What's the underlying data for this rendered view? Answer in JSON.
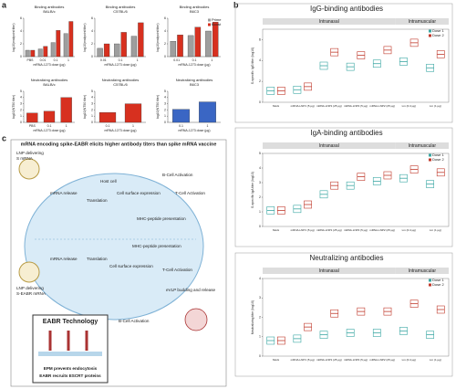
{
  "panel_labels": [
    "a",
    "b",
    "c"
  ],
  "chart_data": [
    {
      "type": "bar",
      "title": "Binding antibodies",
      "subtitle": "BALB/c",
      "ylabel": "log10(endpoint titer)",
      "xlabel": "mRNA-1273 dose (µg)",
      "categories": [
        "PBS",
        "0.01",
        "0.1",
        "1"
      ],
      "ylim": [
        0,
        6
      ],
      "yticks": [
        0,
        2,
        4,
        6
      ],
      "series": [
        {
          "name": "Prime",
          "color": "#9e9e9e",
          "values": [
            1,
            1.2,
            2.2,
            3.6
          ]
        },
        {
          "name": "Boost",
          "color": "#d7301f",
          "values": [
            1,
            1.6,
            4.1,
            5.5
          ]
        }
      ]
    },
    {
      "type": "bar",
      "title": "Binding antibodies",
      "subtitle": "C57BL/6",
      "ylabel": "log10(endpoint titer)",
      "xlabel": "mRNA-1273 dose (µg)",
      "categories": [
        "0.01",
        "0.1",
        "1"
      ],
      "ylim": [
        0,
        6
      ],
      "yticks": [
        0,
        2,
        4,
        6
      ],
      "series": [
        {
          "name": "Prime",
          "color": "#9e9e9e",
          "values": [
            1.3,
            2.0,
            3.2
          ]
        },
        {
          "name": "Boost",
          "color": "#d7301f",
          "values": [
            2.0,
            3.8,
            5.3
          ]
        }
      ]
    },
    {
      "type": "bar",
      "title": "Binding antibodies",
      "subtitle": "B6C3",
      "ylabel": "log10(endpoint titer)",
      "xlabel": "mRNA-1273 dose (µg)",
      "categories": [
        "0.01",
        "0.1",
        "1"
      ],
      "ylim": [
        0,
        6
      ],
      "yticks": [
        0,
        2,
        4,
        6
      ],
      "legend": "top-right",
      "series": [
        {
          "name": "Prime",
          "color": "#9e9e9e",
          "values": [
            2.4,
            3.3,
            4.0
          ]
        },
        {
          "name": "Boost",
          "color": "#d7301f",
          "values": [
            3.4,
            4.6,
            5.4
          ]
        }
      ]
    },
    {
      "type": "bar",
      "title": "Neutralizing antibodies",
      "subtitle": "BALB/c",
      "ylabel": "log10(NT50 titer)",
      "xlabel": "mRNA-1273 dose (µg)",
      "categories": [
        "PBS",
        "0.1",
        "1"
      ],
      "ylim": [
        0,
        5
      ],
      "yticks": [
        0,
        1,
        2,
        3,
        4,
        5
      ],
      "series": [
        {
          "name": "Boost",
          "color": "#d7301f",
          "values": [
            1.5,
            1.8,
            4.0
          ]
        }
      ]
    },
    {
      "type": "bar",
      "title": "Neutralizing antibodies",
      "subtitle": "C57BL/6",
      "ylabel": "log10(NT50 titer)",
      "xlabel": "mRNA-1273 dose (µg)",
      "categories": [
        "0.1",
        "1"
      ],
      "ylim": [
        0,
        5
      ],
      "yticks": [
        0,
        1,
        2,
        3,
        4,
        5
      ],
      "series": [
        {
          "name": "Boost",
          "color": "#d7301f",
          "values": [
            1.6,
            3.0
          ]
        }
      ]
    },
    {
      "type": "bar",
      "title": "Neutralizing antibodies",
      "subtitle": "B6C3",
      "ylabel": "log10(NT50 titer)",
      "xlabel": "mRNA-1273 dose (µg)",
      "categories": [
        "0.1",
        "1"
      ],
      "ylim": [
        0,
        5
      ],
      "yticks": [
        0,
        1,
        2,
        3,
        4,
        5
      ],
      "series": [
        {
          "name": "Boost",
          "color": "#3a66c4",
          "values": [
            2.1,
            3.3
          ]
        }
      ]
    },
    {
      "type": "box",
      "title": "IgG-binding antibodies",
      "groups": [
        "Intranasal",
        "Intramuscular"
      ],
      "ylabel": "S-specific IgG titer (log10)",
      "categories": [
        "Mock",
        "mRNA-LNP1 (5 µg)",
        "mRNA-LNP1 (25 µg)",
        "mRNA-LNP2 (5 µg)",
        "mRNA-LNP2 (25 µg)",
        "Lm (0.4 µg)",
        "Lm (1 µg)"
      ],
      "ylim": [
        0,
        7
      ],
      "yticks": [
        0,
        2,
        4,
        6
      ],
      "series": [
        {
          "name": "Dose 1",
          "color": "#3aa7a3",
          "values": [
            1.1,
            1.2,
            3.5,
            3.4,
            3.7,
            3.9,
            3.3
          ]
        },
        {
          "name": "Dose 2",
          "color": "#c0392b",
          "values": [
            1.1,
            1.5,
            4.8,
            4.5,
            5.0,
            5.7,
            4.6
          ]
        }
      ]
    },
    {
      "type": "box",
      "title": "IgA-binding antibodies",
      "groups": [
        "Intranasal",
        "Intramuscular"
      ],
      "ylabel": "S-specific IgA titer (log10)",
      "categories": [
        "Mock",
        "mRNA-LNP1 (5 µg)",
        "mRNA-LNP1 (25 µg)",
        "mRNA-LNP2 (5 µg)",
        "mRNA-LNP2 (25 µg)",
        "Lm (0.4 µg)",
        "Lm (1 µg)"
      ],
      "ylim": [
        0,
        5
      ],
      "yticks": [
        0,
        1,
        2,
        3,
        4,
        5
      ],
      "series": [
        {
          "name": "Dose 1",
          "color": "#3aa7a3",
          "values": [
            1.1,
            1.2,
            2.2,
            2.8,
            3.1,
            3.3,
            2.9
          ]
        },
        {
          "name": "Dose 2",
          "color": "#c0392b",
          "values": [
            1.1,
            1.5,
            2.8,
            3.4,
            3.5,
            3.9,
            3.7
          ]
        }
      ]
    },
    {
      "type": "box",
      "title": "Neutralizing antibodies",
      "groups": [
        "Intranasal",
        "Intramuscular"
      ],
      "ylabel": "Neutralizing titer (log10)",
      "categories": [
        "Mock",
        "mRNA-LNP1 (5 µg)",
        "mRNA-LNP1 (25 µg)",
        "mRNA-LNP2 (5 µg)",
        "mRNA-LNP2 (25 µg)",
        "Lm (0.4 µg)",
        "Lm (1 µg)"
      ],
      "ylim": [
        0,
        4
      ],
      "yticks": [
        0,
        1,
        2,
        3,
        4
      ],
      "series": [
        {
          "name": "Dose 1",
          "color": "#3aa7a3",
          "values": [
            0.8,
            0.9,
            1.1,
            1.2,
            1.2,
            1.3,
            1.1
          ]
        },
        {
          "name": "Dose 2",
          "color": "#c0392b",
          "values": [
            0.8,
            1.5,
            2.2,
            2.3,
            2.3,
            2.7,
            2.4
          ]
        }
      ]
    }
  ],
  "diagram": {
    "title": "mRNA encoding spike-EABR elicits higher antibody titers than spike mRNA vaccine",
    "lnp_s": [
      "LNP delivering",
      "S mRNA"
    ],
    "lnp_eabr": [
      "LNP delivering",
      "S-EABR mRNA"
    ],
    "host_cell": "Host cell",
    "mrna_release": "mRNA release",
    "translation": "Translation",
    "surface": "Cell surface expression",
    "mhc": "MHC-peptide presentation",
    "b_cell": "B-Cell Activation",
    "t_cell": "T-Cell Activation",
    "evlp": "eVLP budding and release",
    "eabr_title": "EABR Technology",
    "epm": "EPM prevents endocytosis",
    "escrt": "EABR recruits ESCRT proteins"
  }
}
